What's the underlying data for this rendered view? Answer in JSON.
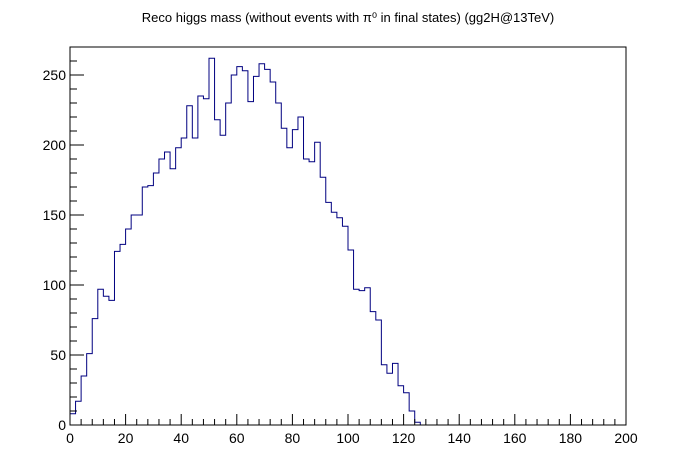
{
  "chart_data": {
    "type": "histogram",
    "title": "Reco higgs mass (without events with π⁰ in final states) (gg2H@13TeV)",
    "xlabel": "",
    "ylabel": "",
    "xlim": [
      0,
      200
    ],
    "ylim": [
      0,
      270
    ],
    "bin_width": 2,
    "bin_start": 0,
    "x_ticks": [
      "0",
      "20",
      "40",
      "60",
      "80",
      "100",
      "120",
      "140",
      "160",
      "180",
      "200"
    ],
    "y_ticks": [
      "0",
      "50",
      "100",
      "150",
      "200",
      "250"
    ],
    "series": [
      {
        "color": "#000080",
        "values": [
          8,
          17,
          35,
          51,
          76,
          97,
          92,
          89,
          124,
          129,
          140,
          150,
          150,
          170,
          171,
          180,
          190,
          195,
          183,
          198,
          205,
          228,
          205,
          235,
          233,
          262,
          218,
          207,
          230,
          250,
          256,
          253,
          231,
          249,
          258,
          254,
          245,
          230,
          212,
          198,
          211,
          220,
          190,
          188,
          202,
          177,
          159,
          152,
          148,
          142,
          125,
          97,
          96,
          98,
          81,
          75,
          43,
          37,
          44,
          28,
          23,
          10,
          2,
          0,
          0,
          0,
          0,
          0,
          0,
          0,
          0,
          0,
          0,
          0,
          0,
          0,
          0,
          0,
          0,
          0,
          0,
          0,
          0,
          0,
          0,
          0,
          0,
          0,
          0,
          0,
          0,
          0,
          0,
          0,
          0,
          0,
          0,
          0,
          0,
          0
        ]
      }
    ],
    "grid": false,
    "legend": "none"
  }
}
